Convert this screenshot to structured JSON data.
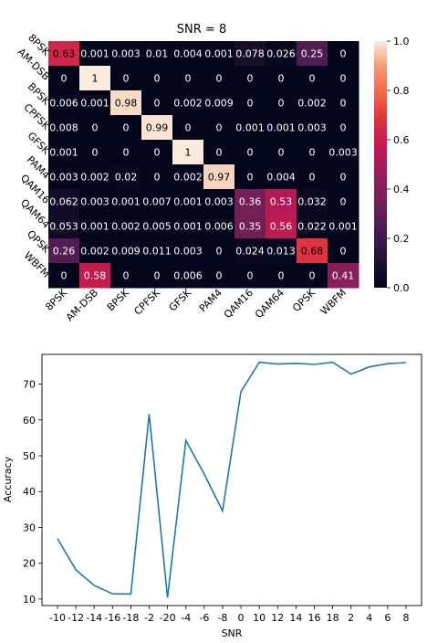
{
  "chart_data": [
    {
      "type": "heatmap",
      "title": "SNR = 8",
      "row_labels": [
        "8PSK",
        "AM-DSB",
        "BPSK",
        "CPFSK",
        "GFSK",
        "PAM4",
        "QAM16",
        "QAM64",
        "QPSK",
        "WBFM"
      ],
      "col_labels": [
        "8PSK",
        "AM-DSB",
        "BPSK",
        "CPFSK",
        "GFSK",
        "PAM4",
        "QAM16",
        "QAM64",
        "QPSK",
        "WBFM"
      ],
      "values": [
        [
          0.63,
          0.001,
          0.003,
          0.01,
          0.004,
          0.001,
          0.078,
          0.026,
          0.25,
          0
        ],
        [
          0,
          1,
          0,
          0,
          0,
          0,
          0,
          0,
          0,
          0
        ],
        [
          0.006,
          0.001,
          0.98,
          0,
          0.002,
          0.009,
          0,
          0,
          0.002,
          0
        ],
        [
          0.008,
          0,
          0,
          0.99,
          0,
          0,
          0.001,
          0.001,
          0.003,
          0
        ],
        [
          0.001,
          0,
          0,
          0,
          1,
          0,
          0,
          0,
          0,
          0.003
        ],
        [
          0.003,
          0.002,
          0.02,
          0,
          0.002,
          0.97,
          0,
          0.004,
          0,
          0
        ],
        [
          0.062,
          0.003,
          0.001,
          0.007,
          0.001,
          0.003,
          0.36,
          0.53,
          0.032,
          0
        ],
        [
          0.053,
          0.001,
          0.002,
          0.005,
          0.001,
          0.006,
          0.35,
          0.56,
          0.022,
          0.001
        ],
        [
          0.26,
          0.002,
          0.009,
          0.011,
          0.003,
          0,
          0.024,
          0.013,
          0.68,
          0
        ],
        [
          0,
          0.58,
          0,
          0,
          0.006,
          0,
          0,
          0,
          0,
          0.41
        ]
      ],
      "cell_labels": [
        [
          "0.63",
          "0.001",
          "0.003",
          "0.01",
          "0.004",
          "0.001",
          "0.078",
          "0.026",
          "0.25",
          "0"
        ],
        [
          "0",
          "1",
          "0",
          "0",
          "0",
          "0",
          "0",
          "0",
          "0",
          "0"
        ],
        [
          "0.006",
          "0.001",
          "0.98",
          "0",
          "0.002",
          "0.009",
          "0",
          "0",
          "0.002",
          "0"
        ],
        [
          "0.008",
          "0",
          "0",
          "0.99",
          "0",
          "0",
          "0.001",
          "0.001",
          "0.003",
          "0"
        ],
        [
          "0.001",
          "0",
          "0",
          "0",
          "1",
          "0",
          "0",
          "0",
          "0",
          "0.003"
        ],
        [
          "0.003",
          "0.002",
          "0.02",
          "0",
          "0.002",
          "0.97",
          "0",
          "0.004",
          "0",
          "0"
        ],
        [
          "0.062",
          "0.003",
          "0.001",
          "0.007",
          "0.001",
          "0.003",
          "0.36",
          "0.53",
          "0.032",
          "0"
        ],
        [
          "0.053",
          "0.001",
          "0.002",
          "0.005",
          "0.001",
          "0.006",
          "0.35",
          "0.56",
          "0.022",
          "0.001"
        ],
        [
          "0.26",
          "0.002",
          "0.009",
          "0.011",
          "0.003",
          "0",
          "0.024",
          "0.013",
          "0.68",
          "0"
        ],
        [
          "0",
          "0.58",
          "0",
          "0",
          "0.006",
          "0",
          "0",
          "0",
          "0",
          "0.41"
        ]
      ],
      "colorbar": {
        "range": [
          0,
          1.0
        ],
        "ticks": [
          "0.0",
          "0.2",
          "0.4",
          "0.6",
          "0.8",
          "1.0"
        ],
        "colormap": "rocket"
      },
      "grid": false
    },
    {
      "type": "line",
      "title": "",
      "xlabel": "SNR",
      "ylabel": "Accuracy",
      "x": [
        "-10",
        "-12",
        "-14",
        "-16",
        "-18",
        "-2",
        "-20",
        "-4",
        "-6",
        "-8",
        "0",
        "10",
        "12",
        "14",
        "16",
        "18",
        "2",
        "4",
        "6",
        "8"
      ],
      "series": [
        {
          "values": [
            26.9,
            18.2,
            13.8,
            11.5,
            11.4,
            61.6,
            10.4,
            54.3,
            44.9,
            34.6,
            67.9,
            76.1,
            75.6,
            75.8,
            75.5,
            76.1,
            72.8,
            74.8,
            75.7,
            76.0
          ],
          "color": "#1f77b4"
        }
      ],
      "ylim": [
        8.2,
        78.3
      ],
      "yticks": [
        "10",
        "20",
        "30",
        "40",
        "50",
        "60",
        "70"
      ],
      "grid": false,
      "legend": "none"
    }
  ]
}
